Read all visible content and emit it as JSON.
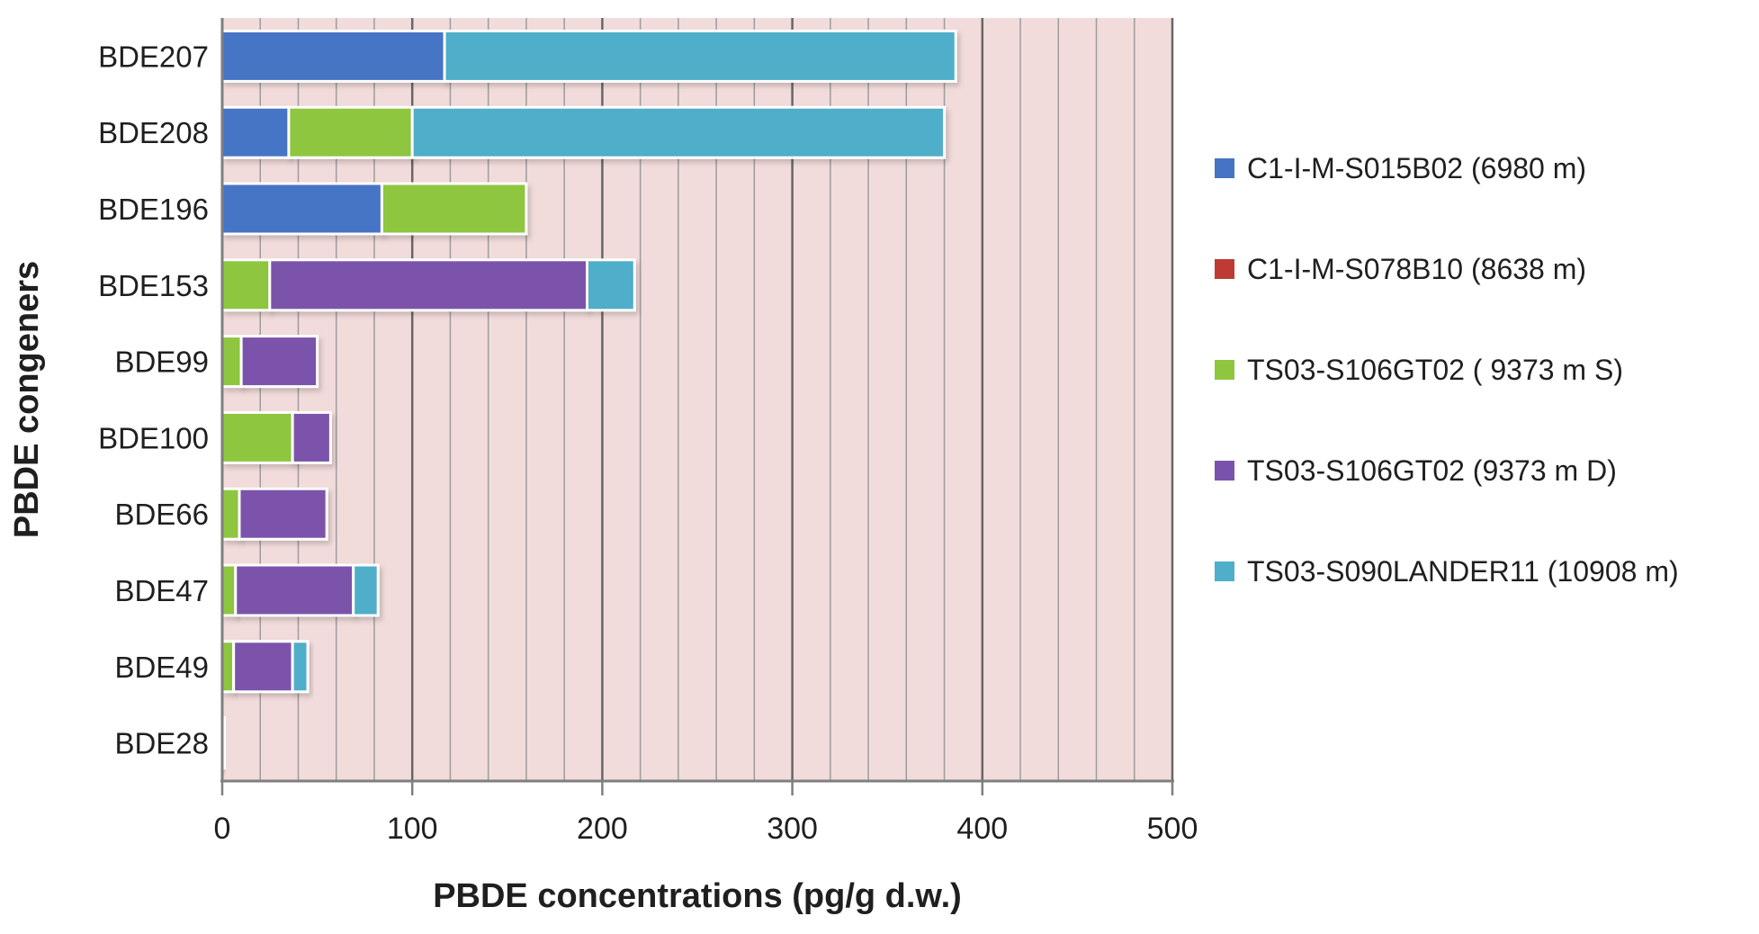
{
  "figure": {
    "background": "#ffffff",
    "text_color": "#1f1f1f"
  },
  "chart_data": {
    "type": "bar",
    "orientation": "horizontal-stacked",
    "title": "",
    "xlabel": "PBDE concentrations (pg/g d.w.)",
    "ylabel": "PBDE congeners",
    "xlim": [
      0,
      500
    ],
    "x_ticks": [
      "0",
      "100",
      "200",
      "300",
      "400",
      "500"
    ],
    "x_tick_values": [
      0,
      100,
      200,
      300,
      400,
      500
    ],
    "grid": {
      "minor_step": 20,
      "major_step": 100,
      "minor_color": "#9C9C9C",
      "major_color": "#666666"
    },
    "plot_background": "#F2DCDB",
    "axis_line_color": "#7F7F7F",
    "bar_outline_color": "#FFFFFF",
    "legend_position": "right",
    "categories": [
      "BDE207",
      "BDE208",
      "BDE196",
      "BDE153",
      "BDE99",
      "BDE100",
      "BDE66",
      "BDE47",
      "BDE49",
      "BDE28"
    ],
    "series": [
      {
        "name": "C1-I-M-S015B02 (6980 m)",
        "color": "#4674C5",
        "values": [
          117,
          35,
          84,
          0,
          0,
          0,
          0,
          0,
          0,
          0
        ]
      },
      {
        "name": "C1-I-M-S078B10 (8638 m)",
        "color": "#BE3B33",
        "values": [
          0,
          0,
          0,
          0,
          0,
          0,
          0,
          0,
          0,
          0
        ]
      },
      {
        "name": "TS03-S106GT02 ( 9373 m S)",
        "color": "#8EC63F",
        "values": [
          0,
          65,
          76,
          25,
          10,
          37,
          9,
          7,
          6,
          0.5
        ]
      },
      {
        "name": "TS03-S106GT02 (9373 m D)",
        "color": "#7B52AB",
        "values": [
          0,
          0,
          0,
          167,
          40,
          20,
          46,
          62,
          31,
          0.5
        ]
      },
      {
        "name": "TS03-S090LANDER11 (10908 m)",
        "color": "#4FAEC9",
        "values": [
          269,
          280,
          0,
          25,
          0,
          0,
          0,
          13,
          8,
          0.5
        ]
      }
    ]
  }
}
